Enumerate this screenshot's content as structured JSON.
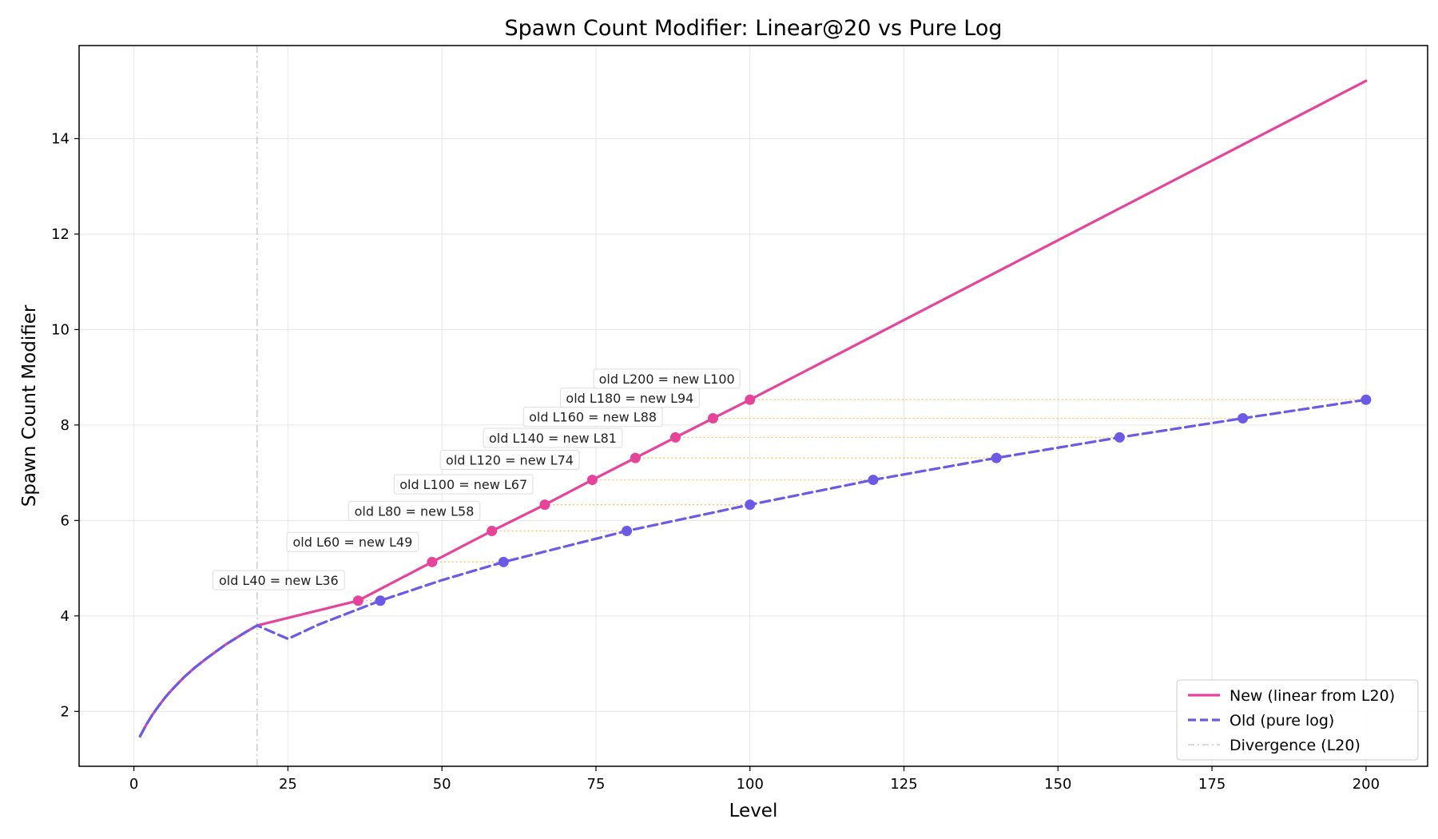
{
  "chart_data": {
    "type": "line",
    "title": "Spawn Count Modifier: Linear@20 vs Pure Log",
    "xlabel": "Level",
    "ylabel": "Spawn Count Modifier",
    "xlim": [
      -8.9,
      210
    ],
    "ylim": [
      0.85,
      15.95
    ],
    "xticks": [
      0,
      25,
      50,
      75,
      100,
      125,
      150,
      175,
      200
    ],
    "yticks": [
      2,
      4,
      6,
      8,
      10,
      12,
      14
    ],
    "grid": true,
    "legend_position": "bottom-right",
    "divergence_level": 20,
    "series": [
      {
        "name": "New (linear from L20)",
        "color": "#e6439b",
        "style": "solid",
        "x": [
          1,
          2,
          3,
          4,
          5,
          6,
          8,
          10,
          12,
          15,
          18,
          20,
          36.4,
          48.4,
          58.1,
          66.7,
          74.4,
          81.4,
          87.9,
          94.0,
          100,
          200
        ],
        "y": [
          1.48,
          1.72,
          1.93,
          2.11,
          2.28,
          2.43,
          2.7,
          2.93,
          3.13,
          3.41,
          3.65,
          3.8,
          4.32,
          5.13,
          5.78,
          6.33,
          6.85,
          7.31,
          7.74,
          8.14,
          8.53,
          15.21
        ]
      },
      {
        "name": "Old (pure log)",
        "color": "#6a5ae6",
        "style": "dashed",
        "x": [
          1,
          2,
          3,
          4,
          5,
          6,
          8,
          10,
          12,
          15,
          18,
          20,
          25,
          30,
          40,
          50,
          60,
          80,
          100,
          120,
          140,
          160,
          180,
          200
        ],
        "y": [
          1.48,
          1.72,
          1.93,
          2.11,
          2.28,
          2.43,
          2.7,
          2.93,
          3.13,
          3.41,
          3.65,
          3.8,
          3.52,
          3.82,
          4.32,
          4.75,
          5.13,
          5.78,
          6.33,
          6.85,
          7.31,
          7.74,
          8.14,
          8.53
        ]
      }
    ],
    "markers_new": {
      "x": [
        36.4,
        48.4,
        58.1,
        66.7,
        74.4,
        81.4,
        87.9,
        94.0,
        100
      ],
      "y": [
        4.32,
        5.13,
        5.78,
        6.33,
        6.85,
        7.31,
        7.74,
        8.14,
        8.53
      ]
    },
    "markers_old": {
      "x": [
        40,
        60,
        80,
        100,
        120,
        140,
        160,
        180,
        200
      ],
      "y": [
        4.32,
        5.13,
        5.78,
        6.33,
        6.85,
        7.31,
        7.74,
        8.14,
        8.53
      ]
    },
    "annotations": [
      {
        "text": "old L40 = new L36",
        "x": 36.4,
        "y": 4.32,
        "tx": 23.5,
        "ty": 4.75
      },
      {
        "text": "old L60 = new L49",
        "x": 48.4,
        "y": 5.13,
        "tx": 35.5,
        "ty": 5.55
      },
      {
        "text": "old L80 = new L58",
        "x": 58.1,
        "y": 5.78,
        "tx": 45.5,
        "ty": 6.2
      },
      {
        "text": "old L100 = new L67",
        "x": 66.7,
        "y": 6.33,
        "tx": 53.5,
        "ty": 6.76
      },
      {
        "text": "old L120 = new L74",
        "x": 74.4,
        "y": 6.85,
        "tx": 61,
        "ty": 7.27
      },
      {
        "text": "old L140 = new L81",
        "x": 81.4,
        "y": 7.31,
        "tx": 68,
        "ty": 7.73
      },
      {
        "text": "old L160 = new L88",
        "x": 87.9,
        "y": 7.74,
        "tx": 74.5,
        "ty": 8.17
      },
      {
        "text": "old L180 = new L94",
        "x": 94.0,
        "y": 8.14,
        "tx": 80.5,
        "ty": 8.57
      },
      {
        "text": "old L200 = new L100",
        "x": 100,
        "y": 8.53,
        "tx": 86.5,
        "ty": 8.97
      }
    ],
    "connector_color": "#f5c56b",
    "divergence_color": "#cccccc",
    "legend": [
      {
        "label": "New (linear from L20)",
        "color": "#e6439b",
        "style": "solid"
      },
      {
        "label": "Old (pure log)",
        "color": "#6a5ae6",
        "style": "dashed"
      },
      {
        "label": "Divergence (L20)",
        "color": "#cccccc",
        "style": "dashdot"
      }
    ]
  }
}
